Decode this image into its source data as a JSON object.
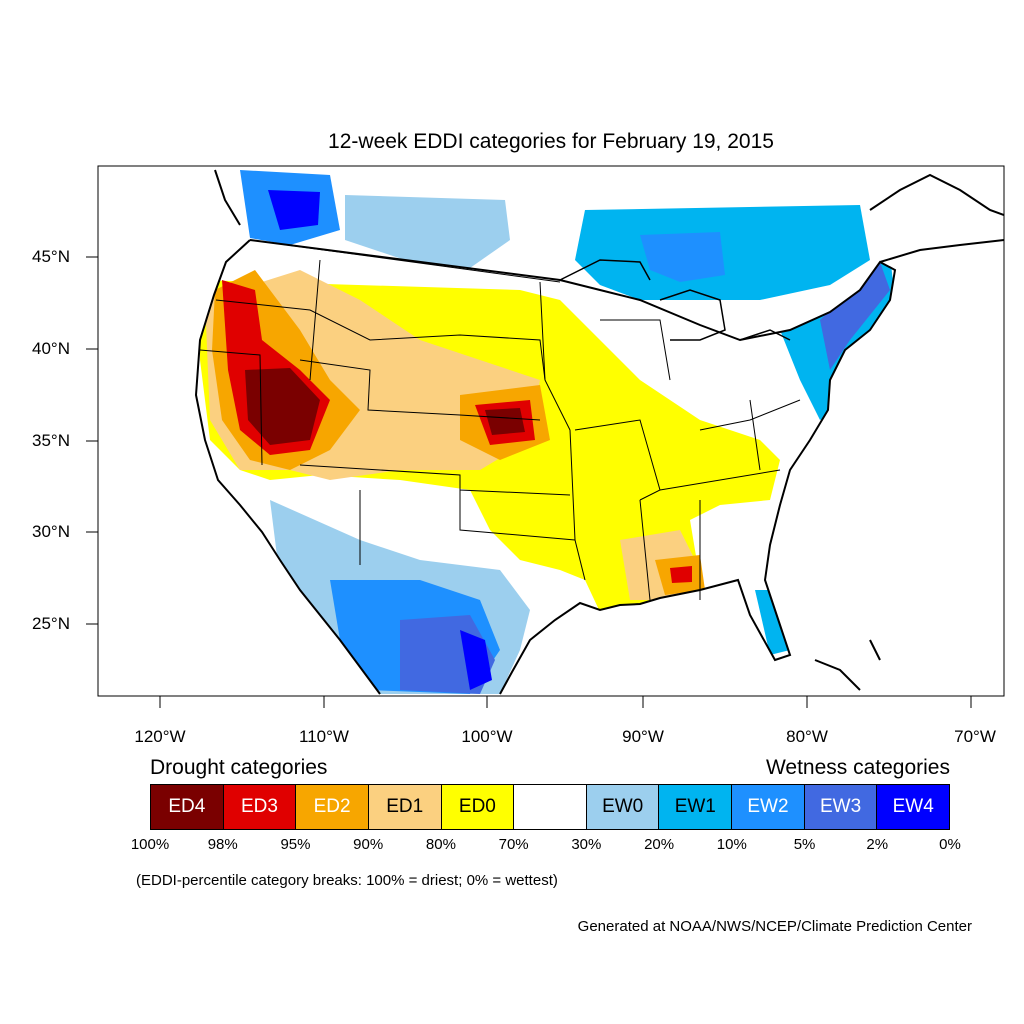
{
  "title": "12-week EDDI categories for February 19, 2015",
  "colors": {
    "ED4": "#7a0000",
    "ED3": "#e00000",
    "ED2": "#f7a600",
    "ED1": "#fbd080",
    "ED0": "#ffff00",
    "NONE": "#ffffff",
    "EW0": "#9ccfee",
    "EW1": "#00b4f0",
    "EW2": "#1e90ff",
    "EW3": "#4169e1",
    "EW4": "#0000ff"
  },
  "lon_labels": [
    "120°W",
    "110°W",
    "100°W",
    "90°W",
    "80°W",
    "70°W"
  ],
  "lat_labels": [
    "45°N",
    "40°N",
    "35°N",
    "30°N",
    "25°N"
  ],
  "legend": {
    "drought_header": "Drought categories",
    "wetness_header": "Wetness categories",
    "categories": [
      {
        "label": "ED4",
        "color": "#7a0000",
        "text_color": "#ffffff"
      },
      {
        "label": "ED3",
        "color": "#e00000",
        "text_color": "#ffffff"
      },
      {
        "label": "ED2",
        "color": "#f7a600",
        "text_color": "#ffffff"
      },
      {
        "label": "ED1",
        "color": "#fbd080",
        "text_color": "#000000"
      },
      {
        "label": "ED0",
        "color": "#ffff00",
        "text_color": "#000000"
      },
      {
        "label": "",
        "color": "#ffffff",
        "text_color": "#000000"
      },
      {
        "label": "EW0",
        "color": "#9ccfee",
        "text_color": "#000000"
      },
      {
        "label": "EW1",
        "color": "#00b4f0",
        "text_color": "#000000"
      },
      {
        "label": "EW2",
        "color": "#1e90ff",
        "text_color": "#ffffff"
      },
      {
        "label": "EW3",
        "color": "#4169e1",
        "text_color": "#ffffff"
      },
      {
        "label": "EW4",
        "color": "#0000ff",
        "text_color": "#ffffff"
      }
    ],
    "breaks": [
      "100%",
      "98%",
      "95%",
      "90%",
      "80%",
      "70%",
      "30%",
      "20%",
      "10%",
      "5%",
      "2%",
      "0%"
    ]
  },
  "break_note": "(EDDI-percentile category breaks: 100% = driest; 0% = wettest)",
  "credit": "Generated at NOAA/NWS/NCEP/Climate Prediction Center"
}
